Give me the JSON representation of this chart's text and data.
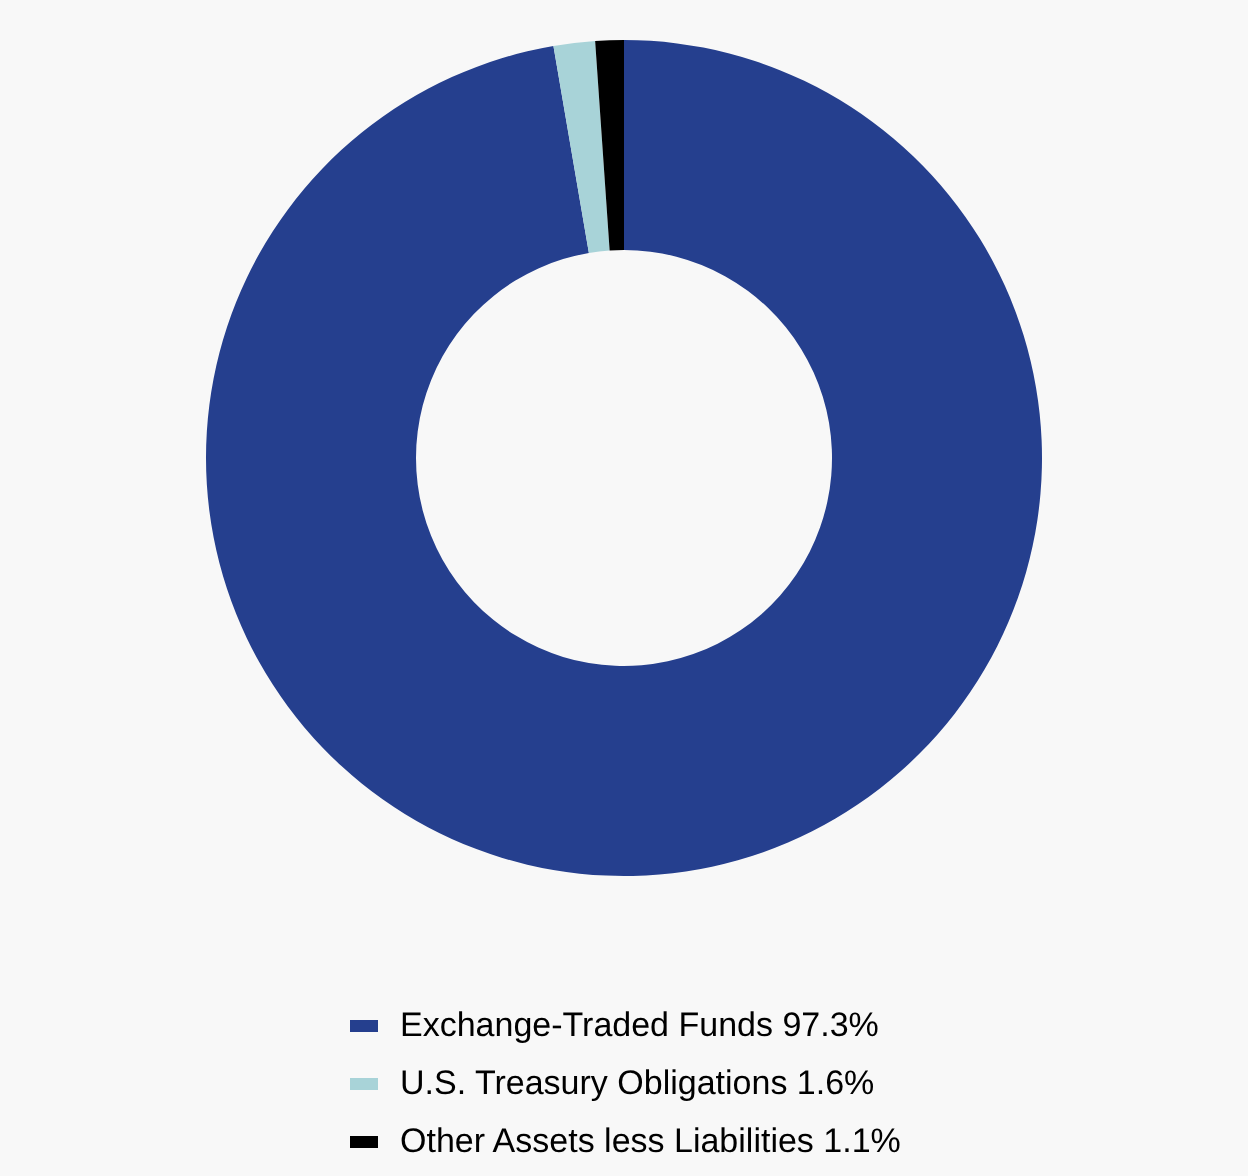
{
  "chart_data": {
    "type": "donut",
    "categories": [
      "Exchange-Traded Funds",
      "U.S. Treasury Obligations",
      "Other Assets less Liabilities"
    ],
    "values": [
      97.3,
      1.6,
      1.1
    ],
    "value_labels": [
      "97.3%",
      "1.6%",
      "1.1%"
    ],
    "colors": [
      "#253f8e",
      "#a8d3d8",
      "#000000"
    ],
    "legend": "bottom"
  }
}
